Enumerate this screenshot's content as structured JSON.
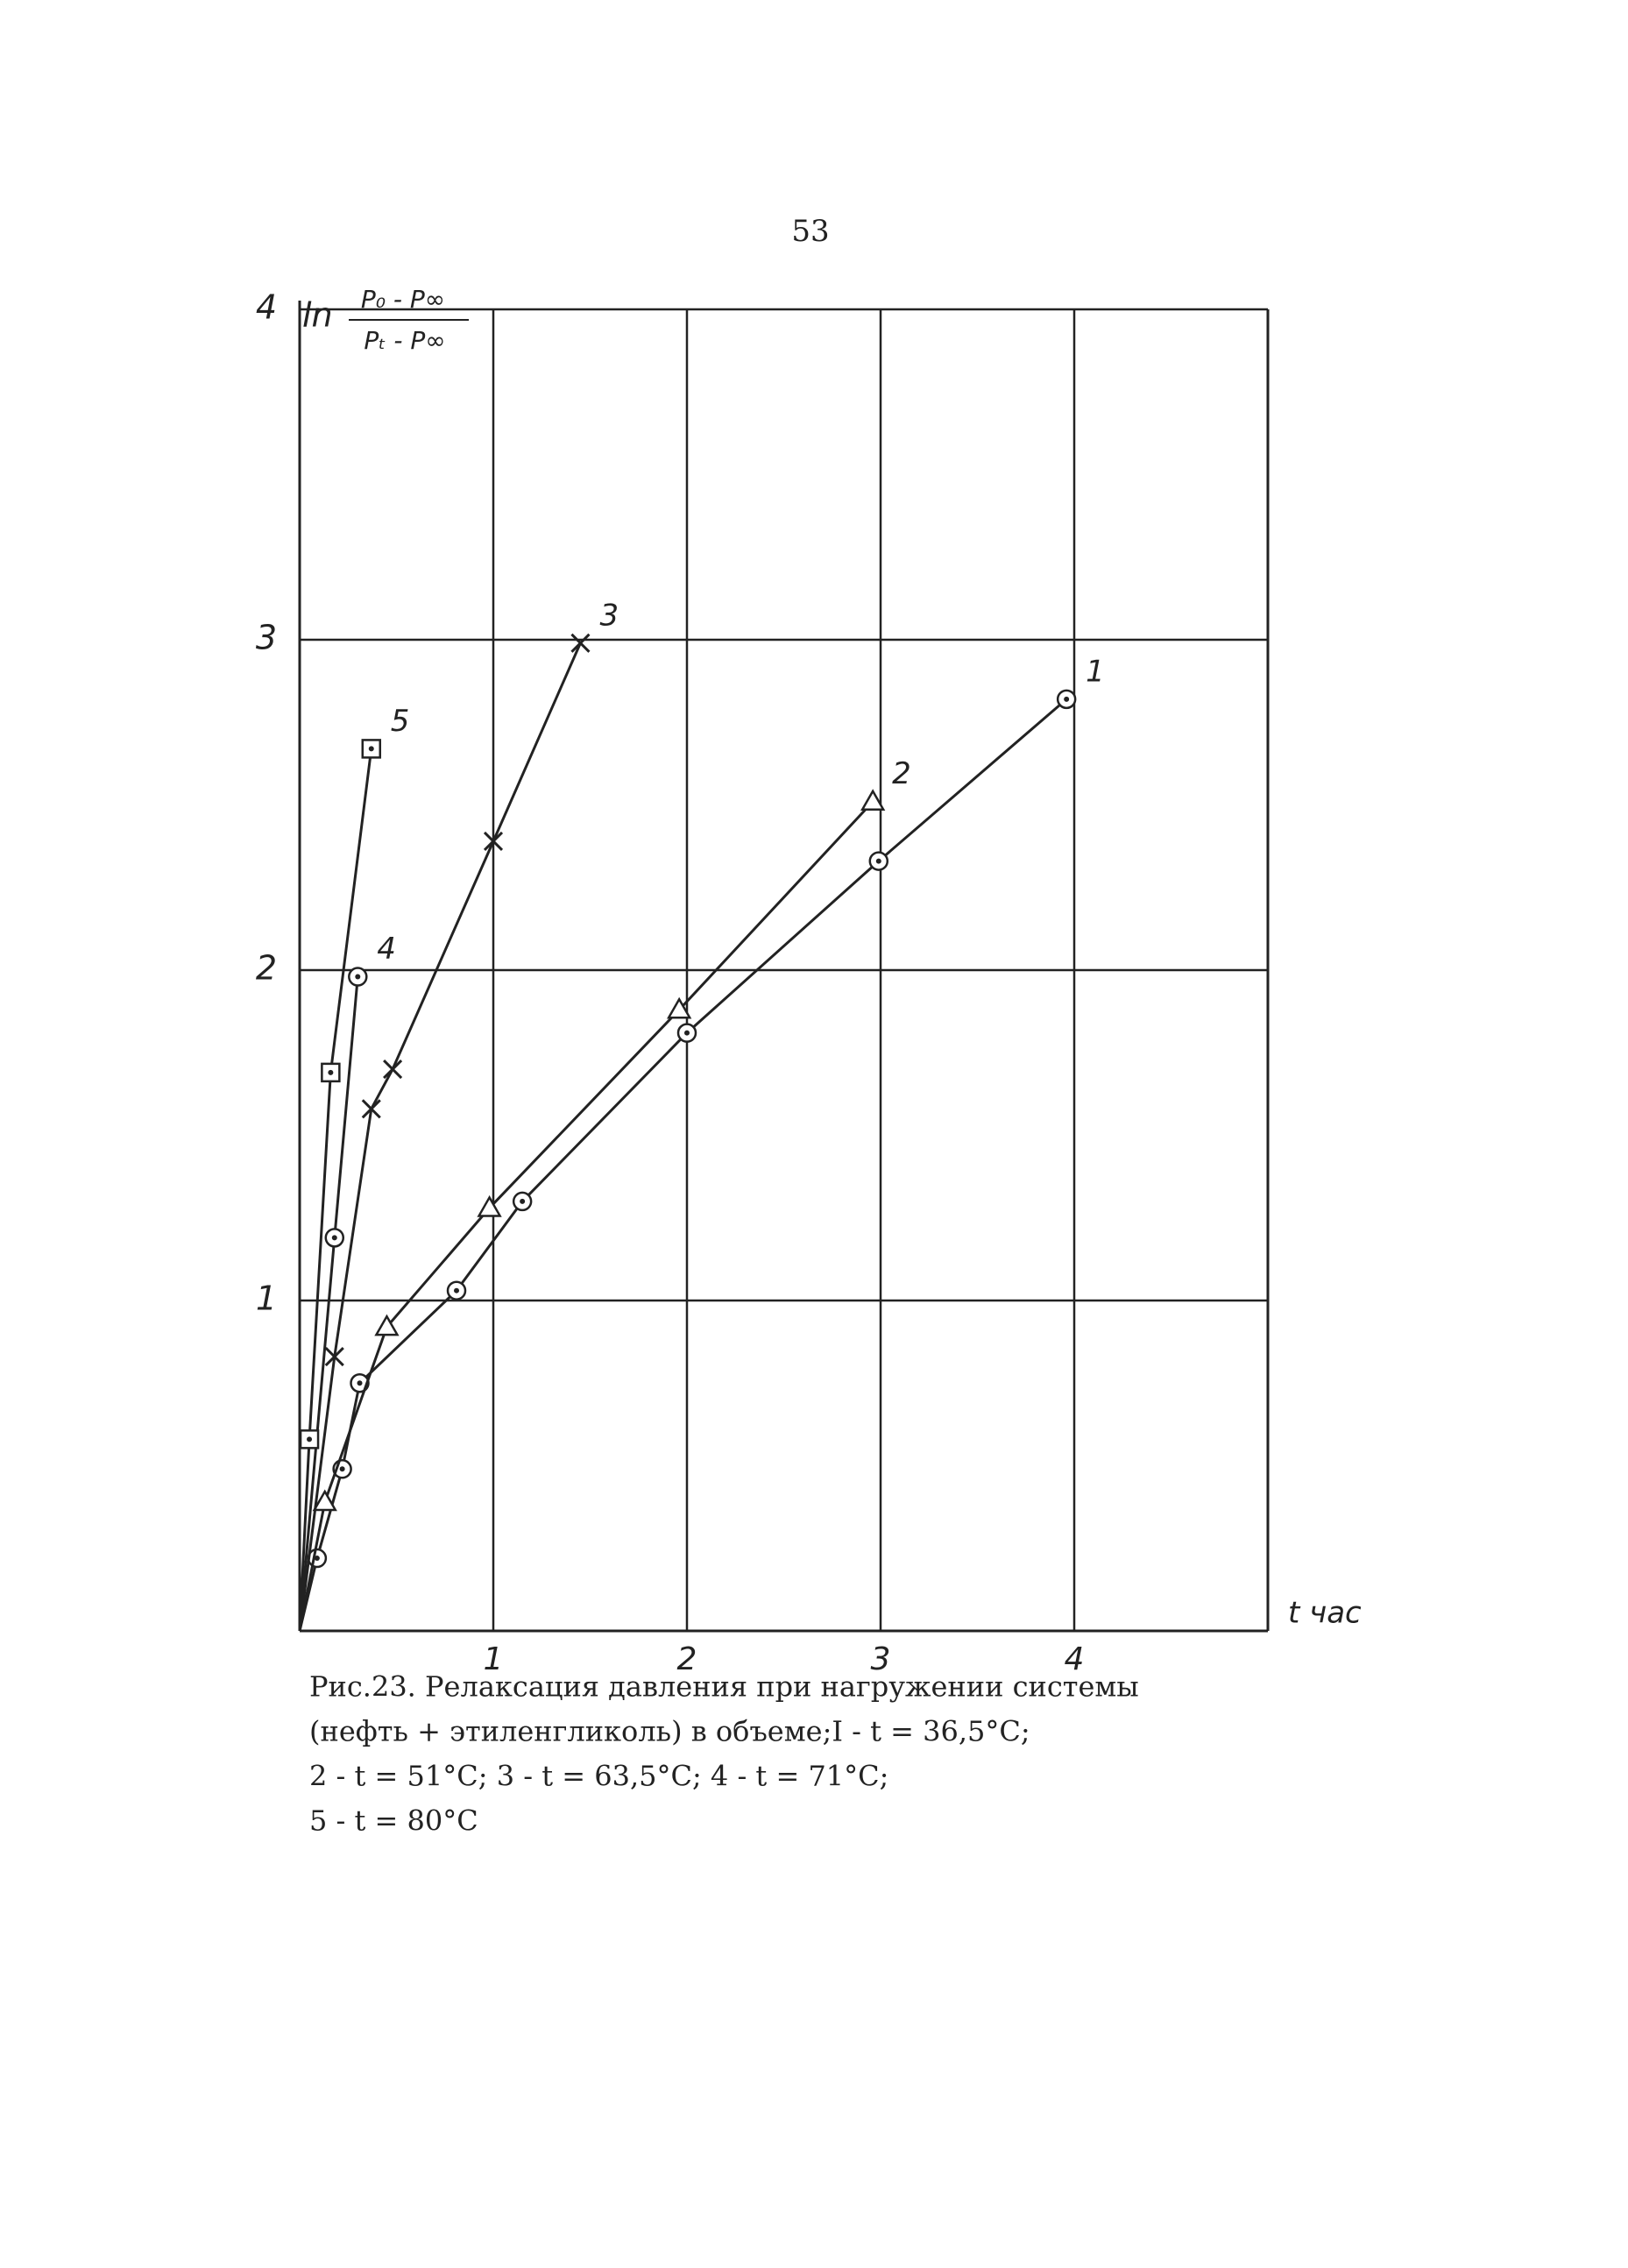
{
  "page_number": "53",
  "chart_data": {
    "type": "line",
    "ylabel": {
      "prefix": "ln",
      "numerator": "P₀ - P∞",
      "denominator": "Pₜ - P∞"
    },
    "xlabel": "t час",
    "xlim": [
      0,
      5
    ],
    "ylim": [
      0,
      4
    ],
    "xticks": [
      1,
      2,
      3,
      4
    ],
    "yticks": [
      1,
      2,
      3,
      4
    ],
    "grid": true,
    "series": [
      {
        "name": "1",
        "marker": "dot-circle",
        "color": "#222",
        "x": [
          0.09,
          0.22,
          0.31,
          0.81,
          1.15,
          2.0,
          2.99,
          3.96
        ],
        "values": [
          0.22,
          0.49,
          0.75,
          1.03,
          1.3,
          1.81,
          2.33,
          2.82
        ]
      },
      {
        "name": "2",
        "marker": "triangle",
        "color": "#222",
        "x": [
          0.13,
          0.45,
          0.98,
          1.96,
          2.96
        ],
        "values": [
          0.39,
          0.92,
          1.28,
          1.88,
          2.51
        ]
      },
      {
        "name": "3",
        "marker": "cross",
        "color": "#222",
        "x": [
          0.18,
          0.37,
          0.48,
          1.0,
          1.45
        ],
        "values": [
          0.83,
          1.58,
          1.7,
          2.39,
          2.99
        ]
      },
      {
        "name": "4",
        "marker": "dot-circle",
        "color": "#222",
        "x": [
          0.18,
          0.3
        ],
        "values": [
          1.19,
          1.98
        ]
      },
      {
        "name": "5",
        "marker": "square",
        "color": "#222",
        "x": [
          0.05,
          0.16,
          0.37
        ],
        "values": [
          0.58,
          1.69,
          2.67
        ]
      }
    ],
    "caption": [
      "Рис.23. Релаксация давления при нагружении системы",
      "(нефть + этиленгликоль) в объеме;I - t = 36,5°C;",
      "2 - t = 51°C; 3 - t = 63,5°C; 4 - t = 71°C;",
      "5 - t = 80°C"
    ]
  }
}
